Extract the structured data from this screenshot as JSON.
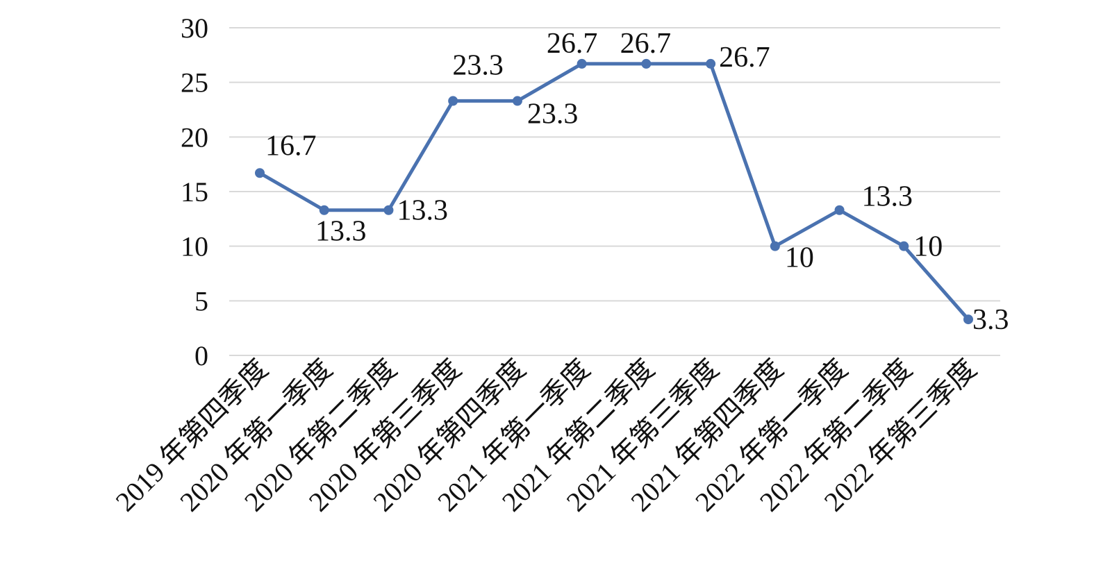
{
  "chart_data": {
    "type": "line",
    "categories": [
      "2019 年第四季度",
      "2020 年第一季度",
      "2020 年第二季度",
      "2020 年第三季度",
      "2020 年第四季度",
      "2021 年第一季度",
      "2021 年第二季度",
      "2021 年第三季度",
      "2021 年第四季度",
      "2022 年第一季度",
      "2022 年第二季度",
      "2022 年第三季度"
    ],
    "series": [
      {
        "values": [
          16.7,
          13.3,
          13.3,
          23.3,
          23.3,
          26.7,
          26.7,
          26.7,
          10,
          13.3,
          10,
          3.3
        ],
        "labels": [
          "16.7",
          "13.3",
          "13.3",
          "23.3",
          "23.3",
          "26.7",
          "26.7",
          "26.7",
          "10",
          "13.3",
          "10",
          "3.3"
        ],
        "color": "#4a72b0"
      }
    ],
    "y_ticks": [
      "0",
      "5",
      "10",
      "15",
      "20",
      "25",
      "30"
    ],
    "ylim": [
      0,
      30
    ],
    "grid": true,
    "legend": "none"
  }
}
